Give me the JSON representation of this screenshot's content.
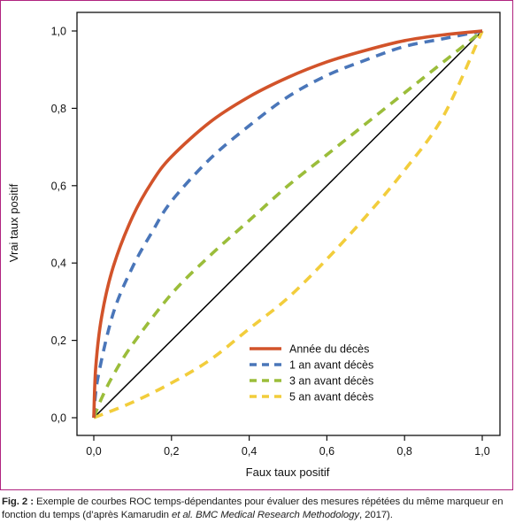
{
  "chart_data": {
    "type": "line",
    "xlabel": "Faux taux positif",
    "ylabel": "Vrai taux positif",
    "xlim": [
      0,
      1
    ],
    "ylim": [
      0,
      1
    ],
    "x_ticks": [
      "0,0",
      "0,2",
      "0,4",
      "0,6",
      "0,8",
      "1,0"
    ],
    "y_ticks": [
      "0,0",
      "0,2",
      "0,4",
      "0,6",
      "0,8",
      "1,0"
    ],
    "tick_values": [
      0,
      0.2,
      0.4,
      0.6,
      0.8,
      1.0
    ],
    "grid": false,
    "legend_position": "bottom-right",
    "reference_line": {
      "x": [
        0,
        1
      ],
      "y": [
        0,
        1
      ],
      "color": "#000000"
    },
    "series": [
      {
        "name": "Année du décès",
        "color": "#d2532a",
        "dash": "solid",
        "x": [
          0,
          0.005,
          0.02,
          0.05,
          0.1,
          0.15,
          0.2,
          0.3,
          0.4,
          0.5,
          0.6,
          0.7,
          0.8,
          0.9,
          1.0
        ],
        "y": [
          0,
          0.13,
          0.26,
          0.39,
          0.52,
          0.61,
          0.675,
          0.765,
          0.83,
          0.88,
          0.92,
          0.95,
          0.975,
          0.99,
          1.0
        ]
      },
      {
        "name": "1 an avant décès",
        "color": "#4a76b9",
        "dash": "dashed",
        "x": [
          0,
          0.01,
          0.05,
          0.1,
          0.15,
          0.2,
          0.3,
          0.4,
          0.5,
          0.6,
          0.7,
          0.8,
          0.9,
          1.0
        ],
        "y": [
          0,
          0.1,
          0.27,
          0.39,
          0.48,
          0.56,
          0.67,
          0.755,
          0.83,
          0.885,
          0.925,
          0.96,
          0.98,
          1.0
        ]
      },
      {
        "name": "3 an avant décès",
        "color": "#9bbd3a",
        "dash": "dashed",
        "x": [
          0,
          0.02,
          0.05,
          0.1,
          0.2,
          0.3,
          0.4,
          0.5,
          0.6,
          0.7,
          0.8,
          0.9,
          1.0
        ],
        "y": [
          0,
          0.05,
          0.11,
          0.19,
          0.32,
          0.42,
          0.51,
          0.6,
          0.68,
          0.76,
          0.84,
          0.92,
          1.0
        ]
      },
      {
        "name": "5 an avant décès",
        "color": "#f2cd3c",
        "dash": "dashed",
        "x": [
          0,
          0.1,
          0.2,
          0.3,
          0.4,
          0.5,
          0.6,
          0.7,
          0.8,
          0.9,
          1.0
        ],
        "y": [
          0,
          0.04,
          0.09,
          0.15,
          0.23,
          0.31,
          0.41,
          0.52,
          0.64,
          0.78,
          1.0
        ]
      }
    ]
  },
  "caption": {
    "label": "Fig. 2 :",
    "text_1": " Exemple de courbes ROC temps-dépendantes pour évaluer des mesures répétées du même marqueur en fonction du temps (d’après Kamarudin ",
    "italic_1": "et al.",
    "text_2": " ",
    "italic_2": "BMC Medical Research Methodology",
    "text_3": ", 2017)."
  }
}
